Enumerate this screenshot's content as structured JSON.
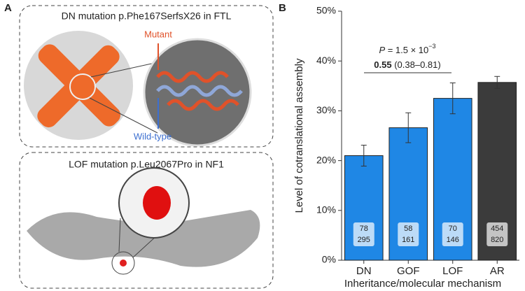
{
  "panel_a": {
    "label": "A",
    "top_title": "DN mutation p.Phe167SerfsX26 in FTL",
    "mutant_label": "Mutant",
    "wild_type_label": "Wild-type",
    "bottom_title": "LOF mutation p.Leu2067Pro in NF1"
  },
  "chart_data": {
    "type": "bar",
    "panel_label": "B",
    "y_label": "Level of cotranslational assembly",
    "x_label": "Inheritance/molecular mechanism",
    "categories": [
      "DN",
      "GOF",
      "LOF",
      "AR"
    ],
    "values": [
      21.0,
      26.6,
      32.5,
      35.7
    ],
    "errors": [
      2.1,
      3.0,
      3.1,
      1.2
    ],
    "colors": [
      "#1f87e5",
      "#1f87e5",
      "#1f87e5",
      "#3b3b3b"
    ],
    "numerators": [
      78,
      58,
      70,
      454
    ],
    "denominators": [
      295,
      161,
      146,
      820
    ],
    "ylim": [
      0,
      50
    ],
    "yticks": [
      {
        "value": 0,
        "label": "0%"
      },
      {
        "value": 10,
        "label": "10%"
      },
      {
        "value": 20,
        "label": "20%"
      },
      {
        "value": 30,
        "label": "30%"
      },
      {
        "value": 40,
        "label": "40%"
      },
      {
        "value": 50,
        "label": "50%"
      }
    ],
    "annotation": {
      "p_symbol": "P",
      "p_text": " = 1.5 × 10",
      "p_exponent": "−3",
      "odds_ratio": "0.55",
      "confidence_interval": " (0.38–0.81)"
    }
  }
}
